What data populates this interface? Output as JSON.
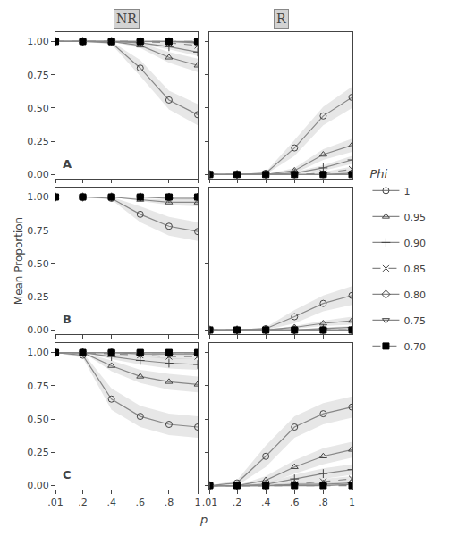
{
  "chart_data": {
    "type": "line",
    "xlabel": "p",
    "ylabel": "Mean Proportion",
    "legend_title": "Phi",
    "legend": "right",
    "grid": false,
    "band_color": "#bbbbbb",
    "x": [
      0.01,
      0.2,
      0.4,
      0.6,
      0.8,
      1.0
    ],
    "xlim": [
      0.01,
      1.0
    ],
    "ylim": [
      -0.03,
      1.07
    ],
    "xticks": [
      {
        "value": 0.01,
        "label": ".01"
      },
      {
        "value": 0.2,
        "label": ".2"
      },
      {
        "value": 0.4,
        "label": ".4"
      },
      {
        "value": 0.6,
        "label": ".6"
      },
      {
        "value": 0.8,
        "label": ".8"
      },
      1
    ],
    "yticks": [
      {
        "value": 0,
        "label": "0.00"
      },
      0.25,
      {
        "value": 0.5,
        "label": "0.50"
      },
      0.75,
      {
        "value": 1,
        "label": "1.00"
      }
    ],
    "series": [
      {
        "name": "1",
        "color": "#888888",
        "marker": "circle-open",
        "line_style": "solid"
      },
      {
        "name": "0.95",
        "color": "#888888",
        "marker": "triangle-up-open",
        "line_style": "solid"
      },
      {
        "name": "0.90",
        "color": "#888888",
        "marker": "cross-thin-open",
        "line_style": "solid"
      },
      {
        "name": "0.85",
        "color": "#888888",
        "marker": "x-thin-open",
        "line_style": "dash"
      },
      {
        "name": "0.80",
        "color": "#888888",
        "marker": "diamond-open",
        "line_style": "solid"
      },
      {
        "name": "0.75",
        "color": "#888888",
        "marker": "triangle-down-open",
        "line_style": "solid"
      },
      {
        "name": "0.70",
        "color": "#888888",
        "marker": "square",
        "line_style": "dash"
      }
    ],
    "panels": [
      {
        "title": "NR",
        "annotation": "A",
        "tick_labels": "y",
        "values": [
          [
            1.0,
            1.0,
            0.99,
            0.8,
            0.56,
            0.45
          ],
          [
            1.0,
            1.0,
            1.0,
            0.97,
            0.88,
            0.82
          ],
          [
            1.0,
            1.0,
            1.0,
            0.99,
            0.96,
            0.92
          ],
          [
            1.0,
            1.0,
            1.0,
            1.0,
            0.99,
            0.97
          ],
          [
            1.0,
            1.0,
            1.0,
            1.0,
            1.0,
            0.99
          ],
          [
            1.0,
            1.0,
            1.0,
            1.0,
            1.0,
            1.0
          ],
          [
            1.0,
            1.0,
            1.0,
            1.0,
            1.0,
            1.0
          ]
        ],
        "lower": [
          [
            1,
            1,
            0.98,
            0.74,
            0.49,
            0.37
          ],
          [
            1,
            1,
            1,
            0.95,
            0.84,
            0.77
          ],
          [
            1,
            1,
            1,
            0.98,
            0.94,
            0.89
          ],
          [
            1,
            1,
            1,
            1,
            0.98,
            0.95
          ],
          [
            1,
            1,
            1,
            1,
            1,
            0.98
          ],
          [
            1,
            1,
            1,
            1,
            1,
            1
          ],
          [
            1,
            1,
            1,
            1,
            1,
            1
          ]
        ],
        "upper": [
          [
            1,
            1,
            1,
            0.86,
            0.63,
            0.53
          ],
          [
            1,
            1,
            1,
            0.99,
            0.92,
            0.87
          ],
          [
            1,
            1,
            1,
            1,
            0.98,
            0.95
          ],
          [
            1,
            1,
            1,
            1,
            1,
            0.99
          ],
          [
            1,
            1,
            1,
            1,
            1,
            1
          ],
          [
            1,
            1,
            1,
            1,
            1,
            1
          ],
          [
            1,
            1,
            1,
            1,
            1,
            1
          ]
        ]
      },
      {
        "title": "R",
        "tick_labels": false,
        "values": [
          [
            0.0,
            0.0,
            0.01,
            0.2,
            0.44,
            0.58
          ],
          [
            0.0,
            0.0,
            0.0,
            0.03,
            0.15,
            0.22
          ],
          [
            0.0,
            0.0,
            0.0,
            0.01,
            0.05,
            0.11
          ],
          [
            0.0,
            0.0,
            0.0,
            0.0,
            0.01,
            0.04
          ],
          [
            0.0,
            0.0,
            0.0,
            0.0,
            0.0,
            0.01
          ],
          [
            0.0,
            0.0,
            0.0,
            0.0,
            0.0,
            0.0
          ],
          [
            0.0,
            0.0,
            0.0,
            0.0,
            0.0,
            0.0
          ]
        ],
        "lower": [
          [
            0,
            0,
            0,
            0.14,
            0.37,
            0.5
          ],
          [
            0,
            0,
            0,
            0.01,
            0.11,
            0.17
          ],
          [
            0,
            0,
            0,
            0,
            0.03,
            0.08
          ],
          [
            0,
            0,
            0,
            0,
            0,
            0.02
          ],
          [
            0,
            0,
            0,
            0,
            0,
            0
          ],
          [
            0,
            0,
            0,
            0,
            0,
            0
          ],
          [
            0,
            0,
            0,
            0,
            0,
            0
          ]
        ],
        "upper": [
          [
            0,
            0,
            0.02,
            0.26,
            0.51,
            0.66
          ],
          [
            0,
            0,
            0,
            0.05,
            0.19,
            0.27
          ],
          [
            0,
            0,
            0,
            0.02,
            0.07,
            0.14
          ],
          [
            0,
            0,
            0,
            0,
            0.02,
            0.06
          ],
          [
            0,
            0,
            0,
            0,
            0,
            0.02
          ],
          [
            0,
            0,
            0,
            0,
            0,
            0
          ],
          [
            0,
            0,
            0,
            0,
            0,
            0
          ]
        ]
      },
      {
        "annotation": "B",
        "tick_labels": "y",
        "values": [
          [
            1.0,
            1.0,
            0.99,
            0.87,
            0.78,
            0.74
          ],
          [
            1.0,
            1.0,
            1.0,
            0.98,
            0.96,
            0.96
          ],
          [
            1.0,
            1.0,
            1.0,
            1.0,
            0.99,
            0.99
          ],
          [
            1.0,
            1.0,
            1.0,
            1.0,
            1.0,
            1.0
          ],
          [
            1.0,
            1.0,
            1.0,
            1.0,
            1.0,
            1.0
          ],
          [
            1.0,
            1.0,
            1.0,
            1.0,
            1.0,
            1.0
          ],
          [
            1.0,
            1.0,
            1.0,
            1.0,
            1.0,
            1.0
          ]
        ],
        "lower": [
          [
            1,
            1,
            0.98,
            0.81,
            0.71,
            0.67
          ],
          [
            1,
            1,
            1,
            0.97,
            0.94,
            0.93
          ],
          [
            1,
            1,
            1,
            1,
            0.98,
            0.98
          ],
          [
            1,
            1,
            1,
            1,
            1,
            1
          ],
          [
            1,
            1,
            1,
            1,
            1,
            1
          ],
          [
            1,
            1,
            1,
            1,
            1,
            1
          ],
          [
            1,
            1,
            1,
            1,
            1,
            1
          ]
        ],
        "upper": [
          [
            1,
            1,
            1,
            0.93,
            0.85,
            0.81
          ],
          [
            1,
            1,
            1,
            0.99,
            0.98,
            0.99
          ],
          [
            1,
            1,
            1,
            1,
            1,
            1
          ],
          [
            1,
            1,
            1,
            1,
            1,
            1
          ],
          [
            1,
            1,
            1,
            1,
            1,
            1
          ],
          [
            1,
            1,
            1,
            1,
            1,
            1
          ],
          [
            1,
            1,
            1,
            1,
            1,
            1
          ]
        ]
      },
      {
        "tick_labels": false,
        "values": [
          [
            0.0,
            0.0,
            0.01,
            0.1,
            0.2,
            0.26
          ],
          [
            0.0,
            0.0,
            0.0,
            0.02,
            0.05,
            0.07
          ],
          [
            0.0,
            0.0,
            0.0,
            0.0,
            0.01,
            0.02
          ],
          [
            0.0,
            0.0,
            0.0,
            0.0,
            0.0,
            0.0
          ],
          [
            0.0,
            0.0,
            0.0,
            0.0,
            0.0,
            0.0
          ],
          [
            0.0,
            0.0,
            0.0,
            0.0,
            0.0,
            0.0
          ],
          [
            0.0,
            0.0,
            0.0,
            0.0,
            0.0,
            0.0
          ]
        ],
        "lower": [
          [
            0,
            0,
            0,
            0.05,
            0.14,
            0.19
          ],
          [
            0,
            0,
            0,
            0.01,
            0.03,
            0.04
          ],
          [
            0,
            0,
            0,
            0,
            0,
            0.01
          ],
          [
            0,
            0,
            0,
            0,
            0,
            0
          ],
          [
            0,
            0,
            0,
            0,
            0,
            0
          ],
          [
            0,
            0,
            0,
            0,
            0,
            0
          ],
          [
            0,
            0,
            0,
            0,
            0,
            0
          ]
        ],
        "upper": [
          [
            0,
            0,
            0.02,
            0.15,
            0.26,
            0.33
          ],
          [
            0,
            0,
            0,
            0.03,
            0.07,
            0.1
          ],
          [
            0,
            0,
            0,
            0,
            0.02,
            0.03
          ],
          [
            0,
            0,
            0,
            0,
            0,
            0
          ],
          [
            0,
            0,
            0,
            0,
            0,
            0
          ],
          [
            0,
            0,
            0,
            0,
            0,
            0
          ],
          [
            0,
            0,
            0,
            0,
            0,
            0
          ]
        ]
      },
      {
        "annotation": "C",
        "tick_labels": true,
        "values": [
          [
            1.0,
            0.98,
            0.65,
            0.52,
            0.46,
            0.44
          ],
          [
            1.0,
            1.0,
            0.9,
            0.82,
            0.78,
            0.76
          ],
          [
            1.0,
            1.0,
            0.97,
            0.94,
            0.92,
            0.91
          ],
          [
            1.0,
            1.0,
            0.99,
            0.98,
            0.97,
            0.97
          ],
          [
            1.0,
            1.0,
            1.0,
            0.99,
            0.99,
            0.99
          ],
          [
            1.0,
            1.0,
            1.0,
            1.0,
            1.0,
            1.0
          ],
          [
            1.0,
            1.0,
            1.0,
            1.0,
            1.0,
            1.0
          ]
        ],
        "lower": [
          [
            1,
            0.96,
            0.57,
            0.44,
            0.38,
            0.36
          ],
          [
            1,
            1,
            0.86,
            0.77,
            0.72,
            0.7
          ],
          [
            1,
            1,
            0.95,
            0.91,
            0.88,
            0.87
          ],
          [
            1,
            1,
            0.98,
            0.97,
            0.95,
            0.95
          ],
          [
            1,
            1,
            1,
            0.98,
            0.98,
            0.98
          ],
          [
            1,
            1,
            1,
            1,
            1,
            1
          ],
          [
            1,
            1,
            1,
            1,
            1,
            1
          ]
        ],
        "upper": [
          [
            1,
            1,
            0.73,
            0.6,
            0.54,
            0.52
          ],
          [
            1,
            1,
            0.94,
            0.87,
            0.84,
            0.82
          ],
          [
            1,
            1,
            0.99,
            0.97,
            0.96,
            0.95
          ],
          [
            1,
            1,
            1,
            0.99,
            0.99,
            0.99
          ],
          [
            1,
            1,
            1,
            1,
            1,
            1
          ],
          [
            1,
            1,
            1,
            1,
            1,
            1
          ],
          [
            1,
            1,
            1,
            1,
            1,
            1
          ]
        ]
      },
      {
        "tick_labels": "x",
        "values": [
          [
            0.0,
            0.02,
            0.22,
            0.44,
            0.54,
            0.59
          ],
          [
            0.0,
            0.0,
            0.04,
            0.14,
            0.22,
            0.27
          ],
          [
            0.0,
            0.0,
            0.01,
            0.05,
            0.09,
            0.12
          ],
          [
            0.0,
            0.0,
            0.0,
            0.01,
            0.03,
            0.05
          ],
          [
            0.0,
            0.0,
            0.0,
            0.01,
            0.01,
            0.02
          ],
          [
            0.0,
            0.0,
            0.0,
            0.0,
            0.0,
            0.01
          ],
          [
            0.0,
            0.0,
            0.0,
            0.0,
            0.0,
            0.0
          ]
        ],
        "lower": [
          [
            0,
            0,
            0.14,
            0.36,
            0.46,
            0.51
          ],
          [
            0,
            0,
            0.01,
            0.09,
            0.16,
            0.21
          ],
          [
            0,
            0,
            0,
            0.02,
            0.05,
            0.08
          ],
          [
            0,
            0,
            0,
            0,
            0.01,
            0.03
          ],
          [
            0,
            0,
            0,
            0,
            0,
            0.01
          ],
          [
            0,
            0,
            0,
            0,
            0,
            0
          ],
          [
            0,
            0,
            0,
            0,
            0,
            0
          ]
        ],
        "upper": [
          [
            0,
            0.04,
            0.3,
            0.52,
            0.62,
            0.67
          ],
          [
            0,
            0,
            0.07,
            0.19,
            0.28,
            0.33
          ],
          [
            0,
            0,
            0.02,
            0.08,
            0.13,
            0.16
          ],
          [
            0,
            0,
            0.01,
            0.02,
            0.05,
            0.07
          ],
          [
            0,
            0,
            0,
            0.02,
            0.02,
            0.03
          ],
          [
            0,
            0,
            0,
            0,
            0,
            0.02
          ],
          [
            0,
            0,
            0,
            0,
            0,
            0
          ]
        ]
      }
    ]
  }
}
